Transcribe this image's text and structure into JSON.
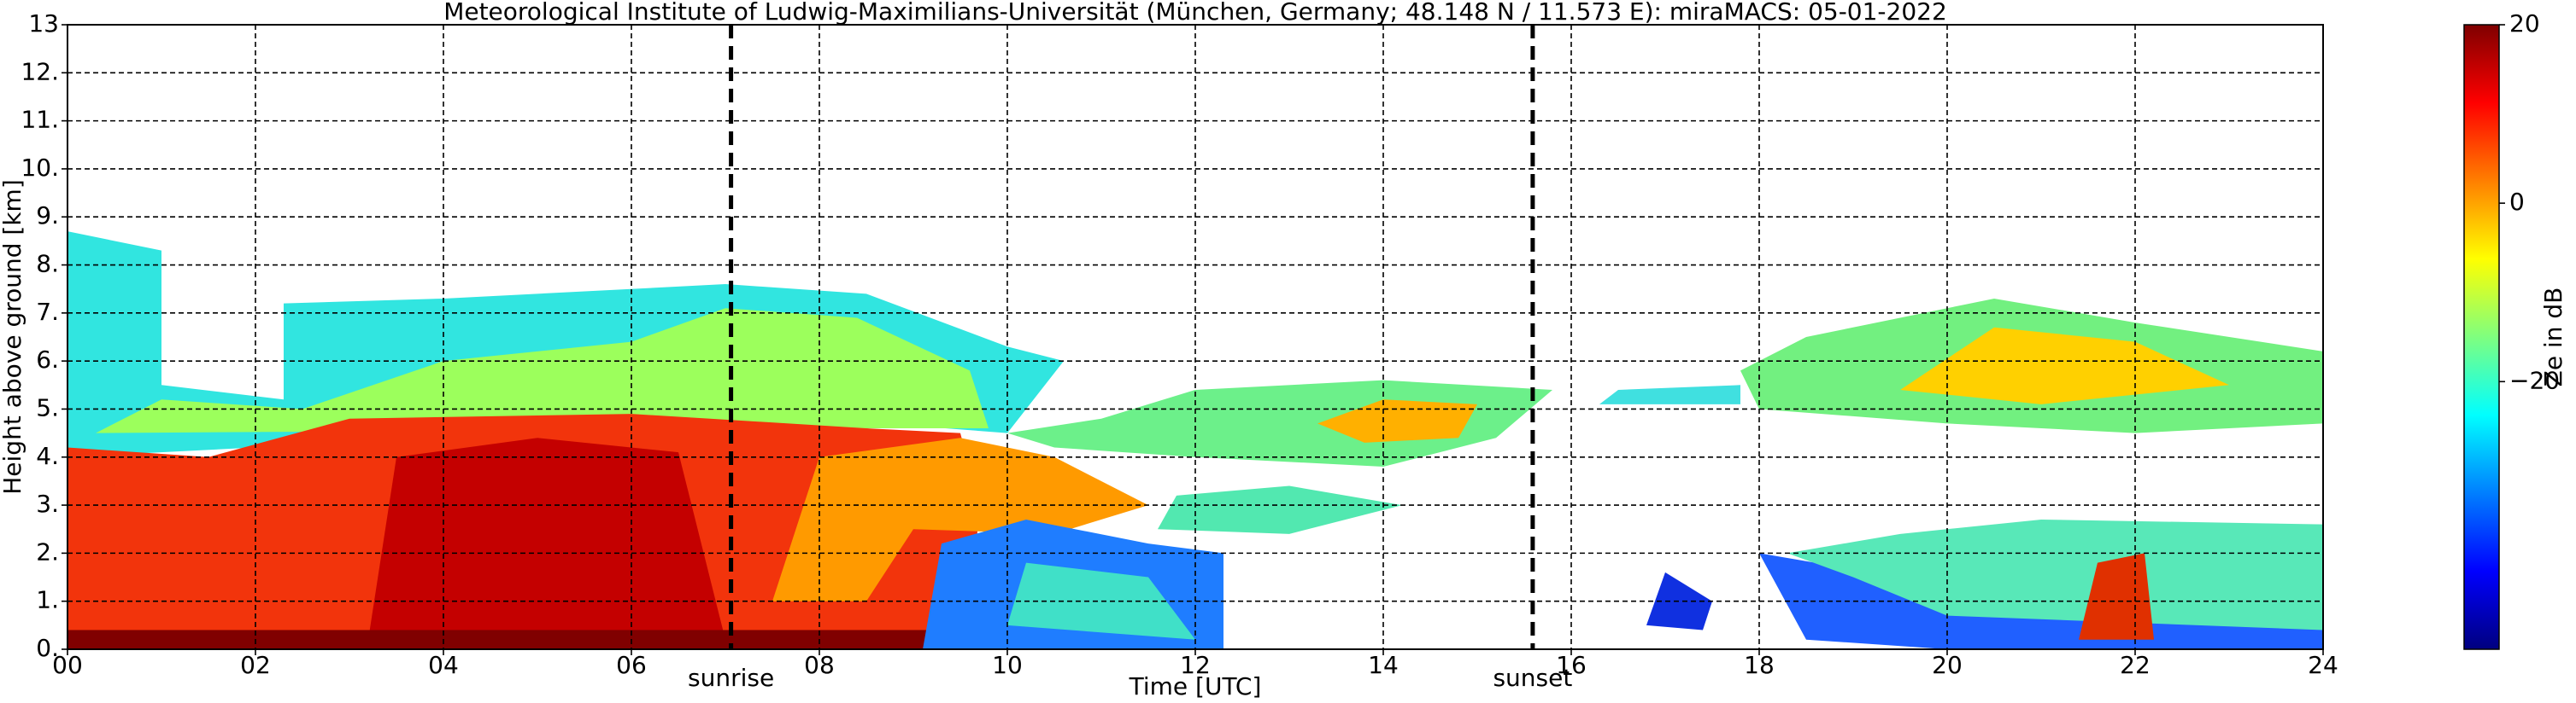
{
  "chart_data": {
    "type": "heatmap",
    "title": "Meteorological Institute of Ludwig-Maximilians-Universität (München, Germany; 48.148 N / 11.573 E):    miraMACS: 05-01-2022",
    "x_label": "Time [UTC]",
    "y_label": "Height above ground [km]",
    "xlim": [
      0,
      24
    ],
    "xticks": [
      {
        "value": 0,
        "label": "00"
      },
      {
        "value": 2,
        "label": "02"
      },
      {
        "value": 4,
        "label": "04"
      },
      {
        "value": 6,
        "label": "06"
      },
      {
        "value": 8,
        "label": "08"
      },
      10,
      12,
      14,
      16,
      18,
      20,
      22,
      24
    ],
    "ylim": [
      0,
      13
    ],
    "yticks": [
      {
        "value": 0,
        "label": "0."
      },
      {
        "value": 1,
        "label": "1."
      },
      {
        "value": 2,
        "label": "2."
      },
      {
        "value": 3,
        "label": "3."
      },
      {
        "value": 4,
        "label": "4."
      },
      {
        "value": 5,
        "label": "5."
      },
      {
        "value": 6,
        "label": "6."
      },
      {
        "value": 7,
        "label": "7."
      },
      {
        "value": 8,
        "label": "8."
      },
      {
        "value": 9,
        "label": "9."
      },
      {
        "value": 10,
        "label": "10."
      },
      {
        "value": 11,
        "label": "11."
      },
      {
        "value": 12,
        "label": "12."
      },
      13
    ],
    "grid": true,
    "vertical_lines": [
      {
        "x": 7.06,
        "label": "sunrise"
      },
      {
        "x": 15.59,
        "label": "sunset"
      }
    ],
    "colorbar": {
      "label": "Ze in dB",
      "colormap": "jet",
      "lim": [
        -50,
        20
      ],
      "ticks": [
        {
          "value": -20,
          "label": "−20"
        },
        0,
        20
      ]
    }
  }
}
